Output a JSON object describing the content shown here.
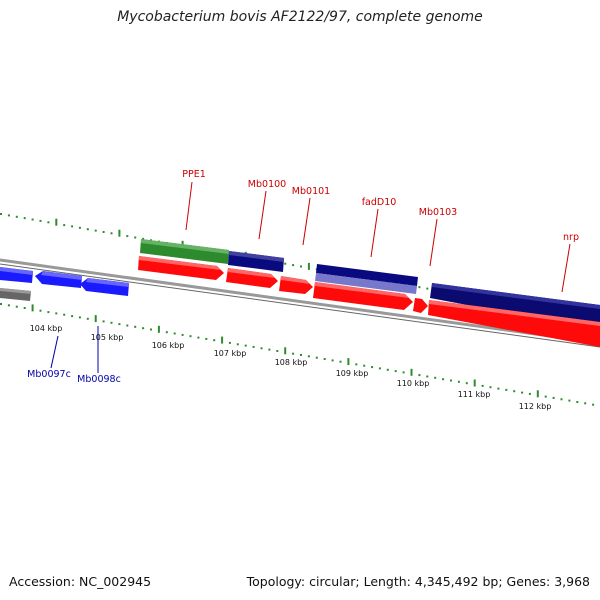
{
  "title": "Mycobacterium bovis AF2122/97, complete genome",
  "footer": {
    "accession": "Accession: NC_002945",
    "summary": "Topology: circular; Length: 4,345,492 bp; Genes: 3,968"
  },
  "colors": {
    "backbone": "#888888",
    "tick": "#2e8b2e",
    "scale_tick": "#228b22",
    "forward_cds": "#ff0000",
    "reverse_cds": "#0000ff",
    "other_reverse": "#000080",
    "ppe": "#228b22",
    "label_forward": "#cc0000",
    "label_reverse": "#0000aa"
  },
  "scale": {
    "labels": [
      "104 kbp",
      "105 kbp",
      "106 kbp",
      "107 kbp",
      "108 kbp",
      "109 kbp",
      "110 kbp",
      "111 kbp",
      "112 kbp"
    ]
  },
  "gene_labels": {
    "forward": [
      "PPE1",
      "Mb0100",
      "Mb0101",
      "fadD10",
      "Mb0103",
      "nrp"
    ],
    "reverse": [
      "Mb0097c",
      "Mb0098c"
    ]
  }
}
